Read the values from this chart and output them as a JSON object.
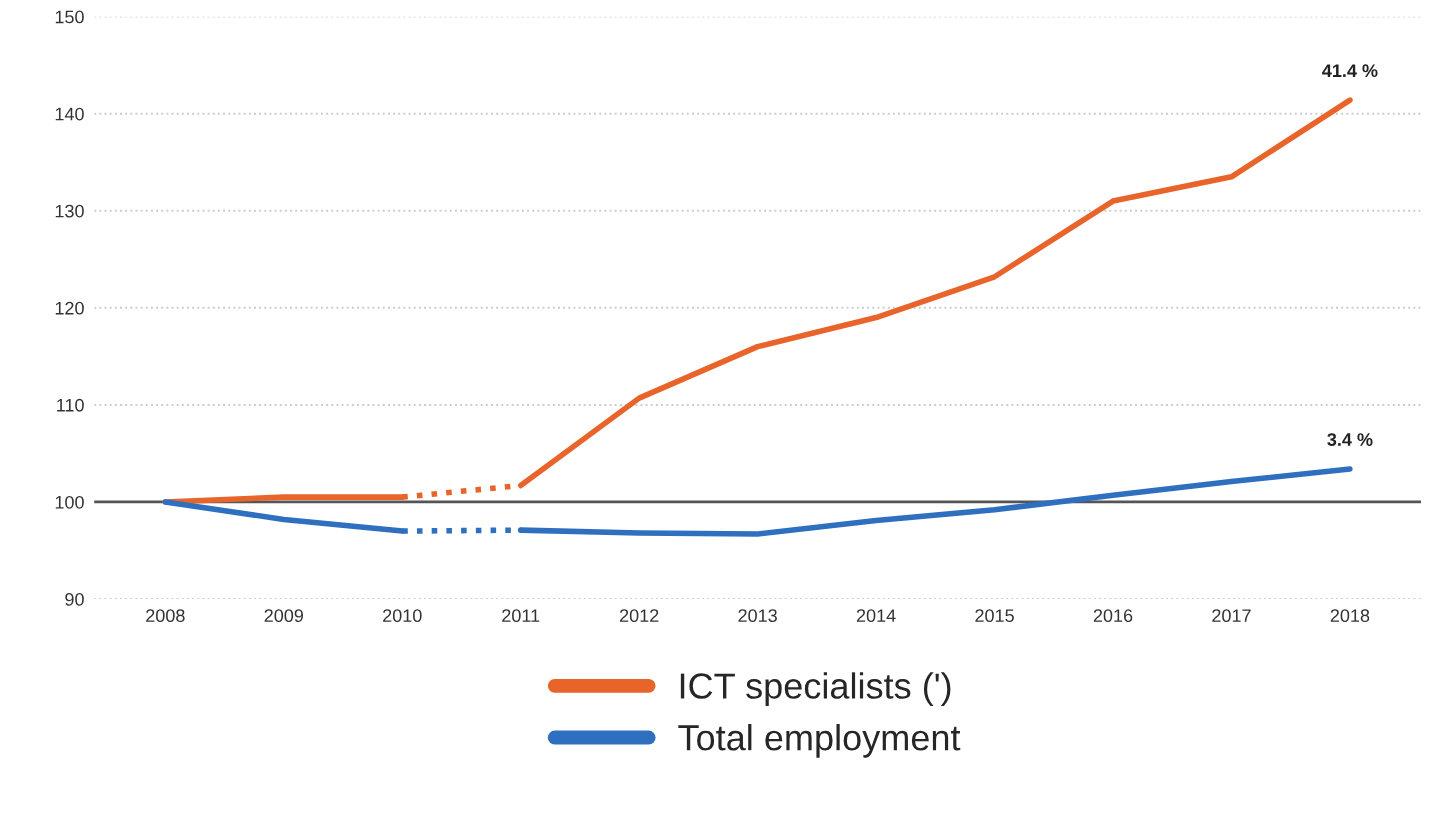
{
  "chart_data": {
    "type": "line",
    "categories": [
      "2008",
      "2009",
      "2010",
      "2011",
      "2012",
      "2013",
      "2014",
      "2015",
      "2016",
      "2017",
      "2018"
    ],
    "series": [
      {
        "name": "ICT specialists (')",
        "color": "#e8642a",
        "line_style": "solid",
        "values": [
          100,
          100.5,
          100.5,
          null,
          null,
          null,
          null,
          null,
          null,
          null,
          null
        ]
      },
      {
        "color": "#e8642a",
        "line_style": "dotted",
        "values": [
          null,
          null,
          100.5,
          101.7,
          null,
          null,
          null,
          null,
          null,
          null,
          null
        ]
      },
      {
        "color": "#e8642a",
        "line_style": "solid",
        "values": [
          null,
          null,
          null,
          101.7,
          110.7,
          116,
          119,
          123.2,
          131,
          133.5,
          141.4
        ]
      },
      {
        "name": "Total employment",
        "color": "#2f6fbf",
        "line_style": "solid",
        "values": [
          100,
          98.2,
          97,
          null,
          null,
          null,
          null,
          null,
          null,
          null,
          null
        ]
      },
      {
        "color": "#2f6fbf",
        "line_style": "dotted",
        "values": [
          null,
          null,
          97,
          97.1,
          null,
          null,
          null,
          null,
          null,
          null,
          null
        ]
      },
      {
        "color": "#2f6fbf",
        "line_style": "solid",
        "values": [
          null,
          null,
          null,
          97.1,
          96.8,
          96.7,
          98.1,
          99.2,
          100.7,
          102.1,
          103.4
        ]
      }
    ],
    "ylim": [
      90,
      150
    ],
    "yticks": [
      90,
      100,
      110,
      120,
      130,
      140,
      150
    ],
    "grid": "y",
    "legend": "bottom",
    "marker": "none",
    "ref_lines": [
      {
        "axis": "y",
        "value": 100,
        "color": "#555555"
      }
    ],
    "annotations": [
      {
        "text": "41.4 %",
        "x": "2018",
        "y": 141.4
      },
      {
        "text": "3.4 %",
        "x": "2018",
        "y": 103.4
      }
    ]
  }
}
